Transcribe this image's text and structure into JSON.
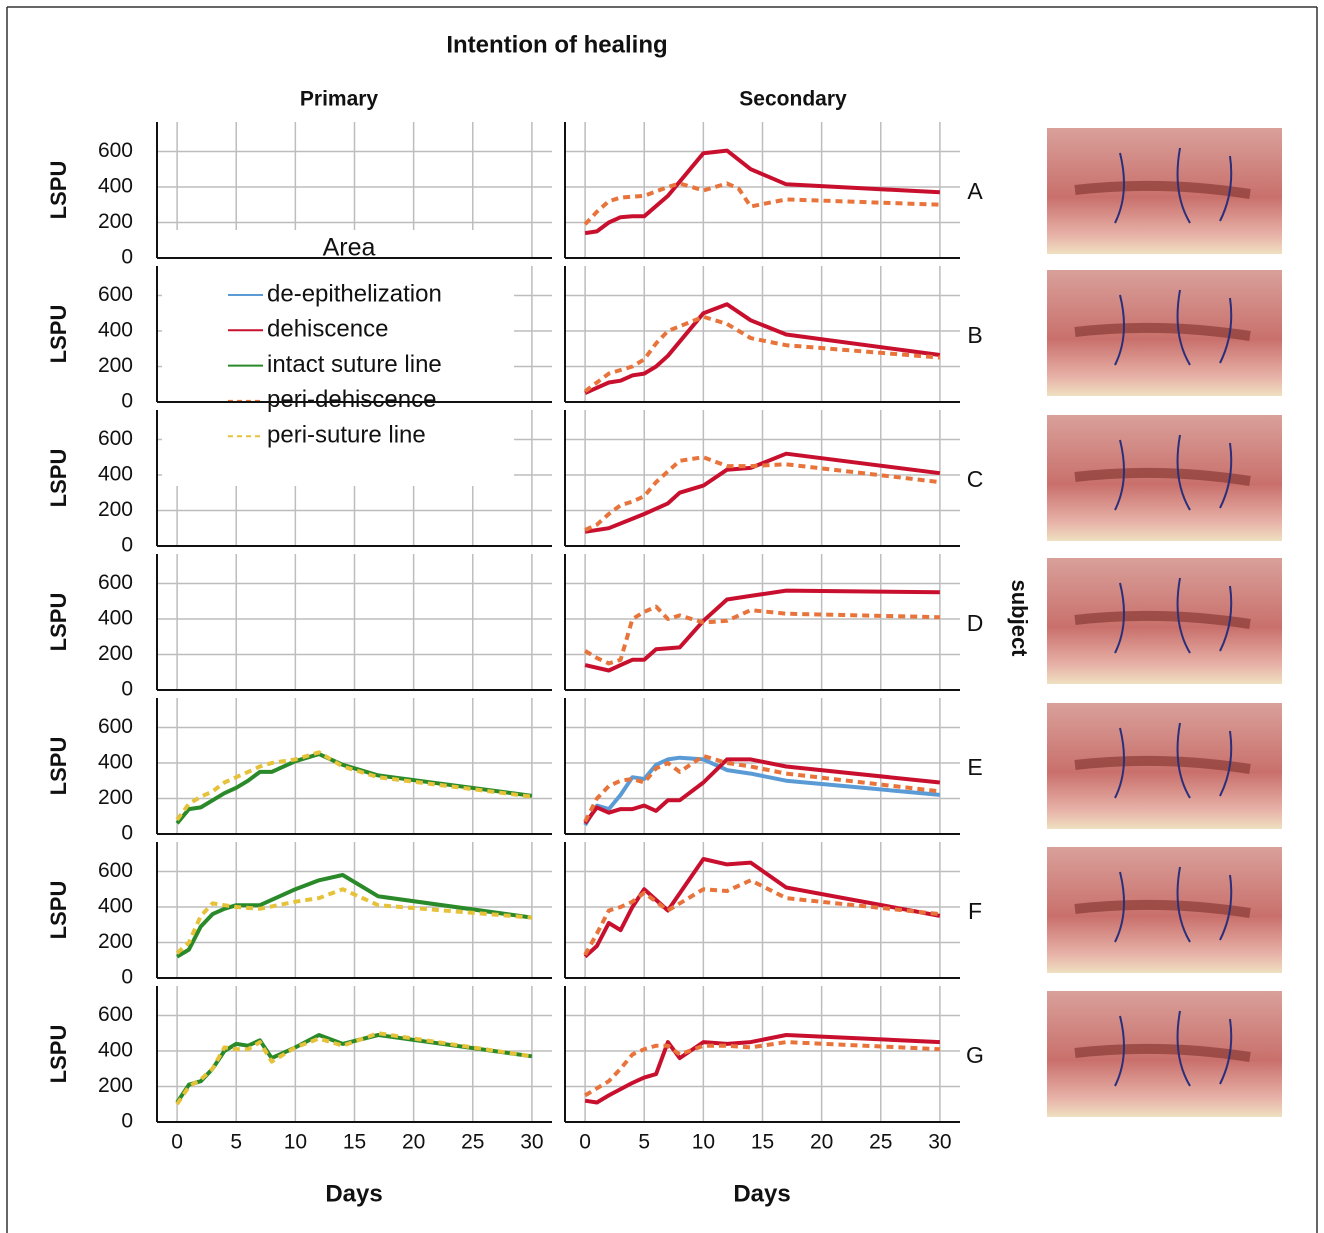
{
  "chart_data": {
    "type": "line",
    "title": "Intention of healing",
    "columns": [
      "Primary",
      "Secondary"
    ],
    "rows": [
      "A",
      "B",
      "C",
      "D",
      "E",
      "F",
      "G"
    ],
    "row_title": "subject",
    "x_label": "Days",
    "y_label": "LSPU",
    "xlim": [
      -1.7,
      31.7
    ],
    "xticks": [
      0,
      5,
      10,
      15,
      20,
      25,
      30
    ],
    "ylim": [
      0,
      766
    ],
    "yticks": [
      0,
      200,
      400,
      600
    ],
    "grid": true,
    "legend_title": "Area",
    "legend": [
      {
        "name": "de-epithelization",
        "color": "#5b9bd5",
        "dash": false
      },
      {
        "name": "dehiscence",
        "color": "#c8102e",
        "dash": false
      },
      {
        "name": "intact suture line",
        "color": "#2a8a2a",
        "dash": false
      },
      {
        "name": "peri-dehiscence",
        "color": "#e8743b",
        "dash": true
      },
      {
        "name": "peri-suture line",
        "color": "#e6c13a",
        "dash": true
      }
    ],
    "panels": [
      [
        {
          "series": []
        },
        {
          "series": [
            {
              "name": "dehiscence",
              "color": "#c8102e",
              "dash": false,
              "x": [
                0,
                1,
                2,
                3,
                4,
                5,
                7,
                10,
                12,
                14,
                17,
                30
              ],
              "values": [
                140,
                150,
                200,
                230,
                235,
                235,
                350,
                590,
                605,
                500,
                415,
                370
              ]
            },
            {
              "name": "peri-dehiscence",
              "color": "#e8743b",
              "dash": true,
              "x": [
                0,
                1,
                2,
                3,
                4,
                5,
                7,
                8,
                10,
                12,
                13,
                14,
                17,
                30
              ],
              "values": [
                190,
                260,
                320,
                340,
                345,
                350,
                400,
                420,
                380,
                420,
                390,
                290,
                330,
                300
              ]
            }
          ]
        }
      ],
      [
        {
          "series": []
        },
        {
          "series": [
            {
              "name": "dehiscence",
              "color": "#c8102e",
              "dash": false,
              "x": [
                0,
                1,
                2,
                3,
                4,
                5,
                6,
                7,
                10,
                12,
                14,
                17,
                30
              ],
              "values": [
                50,
                80,
                110,
                120,
                150,
                160,
                200,
                260,
                500,
                550,
                460,
                380,
                265
              ]
            },
            {
              "name": "peri-dehiscence",
              "color": "#e8743b",
              "dash": true,
              "x": [
                0,
                1,
                2,
                3,
                4,
                5,
                6,
                7,
                10,
                12,
                14,
                17,
                30
              ],
              "values": [
                60,
                110,
                160,
                180,
                200,
                240,
                330,
                400,
                480,
                440,
                360,
                320,
                250
              ]
            }
          ]
        }
      ],
      [
        {
          "series": []
        },
        {
          "series": [
            {
              "name": "dehiscence",
              "color": "#c8102e",
              "dash": false,
              "x": [
                0,
                2,
                5,
                6,
                7,
                8,
                10,
                12,
                14,
                17,
                30
              ],
              "values": [
                80,
                100,
                180,
                210,
                240,
                300,
                340,
                430,
                440,
                520,
                410
              ]
            },
            {
              "name": "peri-dehiscence",
              "color": "#e8743b",
              "dash": true,
              "x": [
                0,
                1,
                2,
                3,
                4,
                5,
                6,
                7,
                8,
                10,
                12,
                14,
                17,
                30
              ],
              "values": [
                90,
                120,
                180,
                230,
                250,
                280,
                360,
                420,
                480,
                500,
                450,
                450,
                460,
                360
              ]
            }
          ]
        }
      ],
      [
        {
          "series": []
        },
        {
          "series": [
            {
              "name": "dehiscence",
              "color": "#c8102e",
              "dash": false,
              "x": [
                0,
                2,
                3,
                4,
                5,
                6,
                8,
                10,
                12,
                14,
                17,
                30
              ],
              "values": [
                140,
                110,
                140,
                170,
                170,
                230,
                240,
                390,
                510,
                530,
                560,
                550
              ]
            },
            {
              "name": "peri-dehiscence",
              "color": "#e8743b",
              "dash": true,
              "x": [
                0,
                1,
                2,
                3,
                4,
                5,
                6,
                7,
                8,
                10,
                12,
                14,
                17,
                30
              ],
              "values": [
                220,
                180,
                150,
                170,
                400,
                440,
                470,
                400,
                420,
                380,
                390,
                450,
                430,
                410
              ]
            }
          ]
        }
      ],
      [
        {
          "series": [
            {
              "name": "intact suture line",
              "color": "#2a8a2a",
              "dash": false,
              "x": [
                0,
                1,
                2,
                3,
                4,
                5,
                6,
                7,
                8,
                10,
                12,
                14,
                17,
                30
              ],
              "values": [
                60,
                140,
                150,
                190,
                230,
                260,
                300,
                350,
                350,
                410,
                450,
                390,
                330,
                215
              ]
            },
            {
              "name": "peri-suture line",
              "color": "#e6c13a",
              "dash": true,
              "x": [
                0,
                1,
                2,
                3,
                4,
                5,
                6,
                7,
                8,
                10,
                12,
                14,
                17,
                30
              ],
              "values": [
                80,
                170,
                210,
                240,
                290,
                320,
                350,
                380,
                400,
                420,
                460,
                380,
                320,
                210
              ]
            }
          ]
        },
        {
          "series": [
            {
              "name": "de-epithelization",
              "color": "#5b9bd5",
              "dash": false,
              "x": [
                0,
                1,
                2,
                3,
                4,
                5,
                6,
                7,
                8,
                10,
                12,
                14,
                17,
                30
              ],
              "values": [
                50,
                160,
                140,
                220,
                320,
                310,
                390,
                420,
                430,
                420,
                360,
                340,
                300,
                220
              ]
            },
            {
              "name": "dehiscence",
              "color": "#c8102e",
              "dash": false,
              "x": [
                0,
                1,
                2,
                3,
                4,
                5,
                6,
                7,
                8,
                10,
                12,
                14,
                17,
                30
              ],
              "values": [
                60,
                150,
                120,
                140,
                140,
                160,
                130,
                190,
                190,
                290,
                420,
                420,
                380,
                290
              ]
            },
            {
              "name": "peri-dehiscence",
              "color": "#e8743b",
              "dash": true,
              "x": [
                0,
                1,
                2,
                3,
                4,
                5,
                6,
                7,
                8,
                10,
                12,
                14,
                17,
                30
              ],
              "values": [
                70,
                200,
                270,
                300,
                310,
                290,
                370,
                400,
                350,
                440,
                400,
                380,
                340,
                240
              ]
            }
          ]
        }
      ],
      [
        {
          "series": [
            {
              "name": "intact suture line",
              "color": "#2a8a2a",
              "dash": false,
              "x": [
                0,
                1,
                2,
                3,
                4,
                5,
                7,
                10,
                12,
                14,
                17,
                30
              ],
              "values": [
                120,
                160,
                290,
                360,
                390,
                410,
                410,
                500,
                550,
                580,
                460,
                340
              ]
            },
            {
              "name": "peri-suture line",
              "color": "#e6c13a",
              "dash": true,
              "x": [
                0,
                1,
                2,
                3,
                4,
                5,
                7,
                10,
                12,
                14,
                17,
                30
              ],
              "values": [
                140,
                200,
                350,
                420,
                410,
                400,
                390,
                430,
                450,
                500,
                410,
                340
              ]
            }
          ]
        },
        {
          "series": [
            {
              "name": "dehiscence",
              "color": "#c8102e",
              "dash": false,
              "x": [
                0,
                1,
                2,
                3,
                4,
                5,
                7,
                10,
                12,
                14,
                17,
                30
              ],
              "values": [
                120,
                180,
                310,
                270,
                400,
                500,
                380,
                670,
                640,
                650,
                510,
                350
              ]
            },
            {
              "name": "peri-dehiscence",
              "color": "#e8743b",
              "dash": true,
              "x": [
                0,
                1,
                2,
                3,
                4,
                5,
                7,
                10,
                12,
                14,
                17,
                30
              ],
              "values": [
                130,
                250,
                380,
                400,
                430,
                480,
                380,
                500,
                490,
                550,
                450,
                360
              ]
            }
          ]
        }
      ],
      [
        {
          "series": [
            {
              "name": "intact suture line",
              "color": "#2a8a2a",
              "dash": false,
              "x": [
                0,
                1,
                2,
                3,
                4,
                5,
                6,
                7,
                8,
                10,
                12,
                14,
                17,
                30
              ],
              "values": [
                110,
                210,
                230,
                300,
                400,
                440,
                430,
                460,
                360,
                420,
                490,
                440,
                490,
                370
              ]
            },
            {
              "name": "peri-suture line",
              "color": "#e6c13a",
              "dash": true,
              "x": [
                0,
                1,
                2,
                3,
                4,
                5,
                6,
                7,
                8,
                10,
                12,
                14,
                17,
                30
              ],
              "values": [
                100,
                200,
                240,
                300,
                420,
                410,
                410,
                450,
                340,
                420,
                470,
                430,
                500,
                370
              ]
            }
          ]
        },
        {
          "series": [
            {
              "name": "dehiscence",
              "color": "#c8102e",
              "dash": false,
              "x": [
                0,
                1,
                2,
                4,
                5,
                6,
                7,
                8,
                10,
                12,
                14,
                17,
                30
              ],
              "values": [
                120,
                110,
                150,
                220,
                250,
                270,
                450,
                360,
                450,
                440,
                450,
                490,
                450
              ]
            },
            {
              "name": "peri-dehiscence",
              "color": "#e8743b",
              "dash": true,
              "x": [
                0,
                1,
                2,
                3,
                4,
                5,
                6,
                7,
                8,
                10,
                12,
                14,
                17,
                30
              ],
              "values": [
                150,
                190,
                230,
                300,
                380,
                410,
                430,
                430,
                380,
                430,
                430,
                420,
                450,
                410
              ]
            }
          ]
        }
      ]
    ]
  }
}
